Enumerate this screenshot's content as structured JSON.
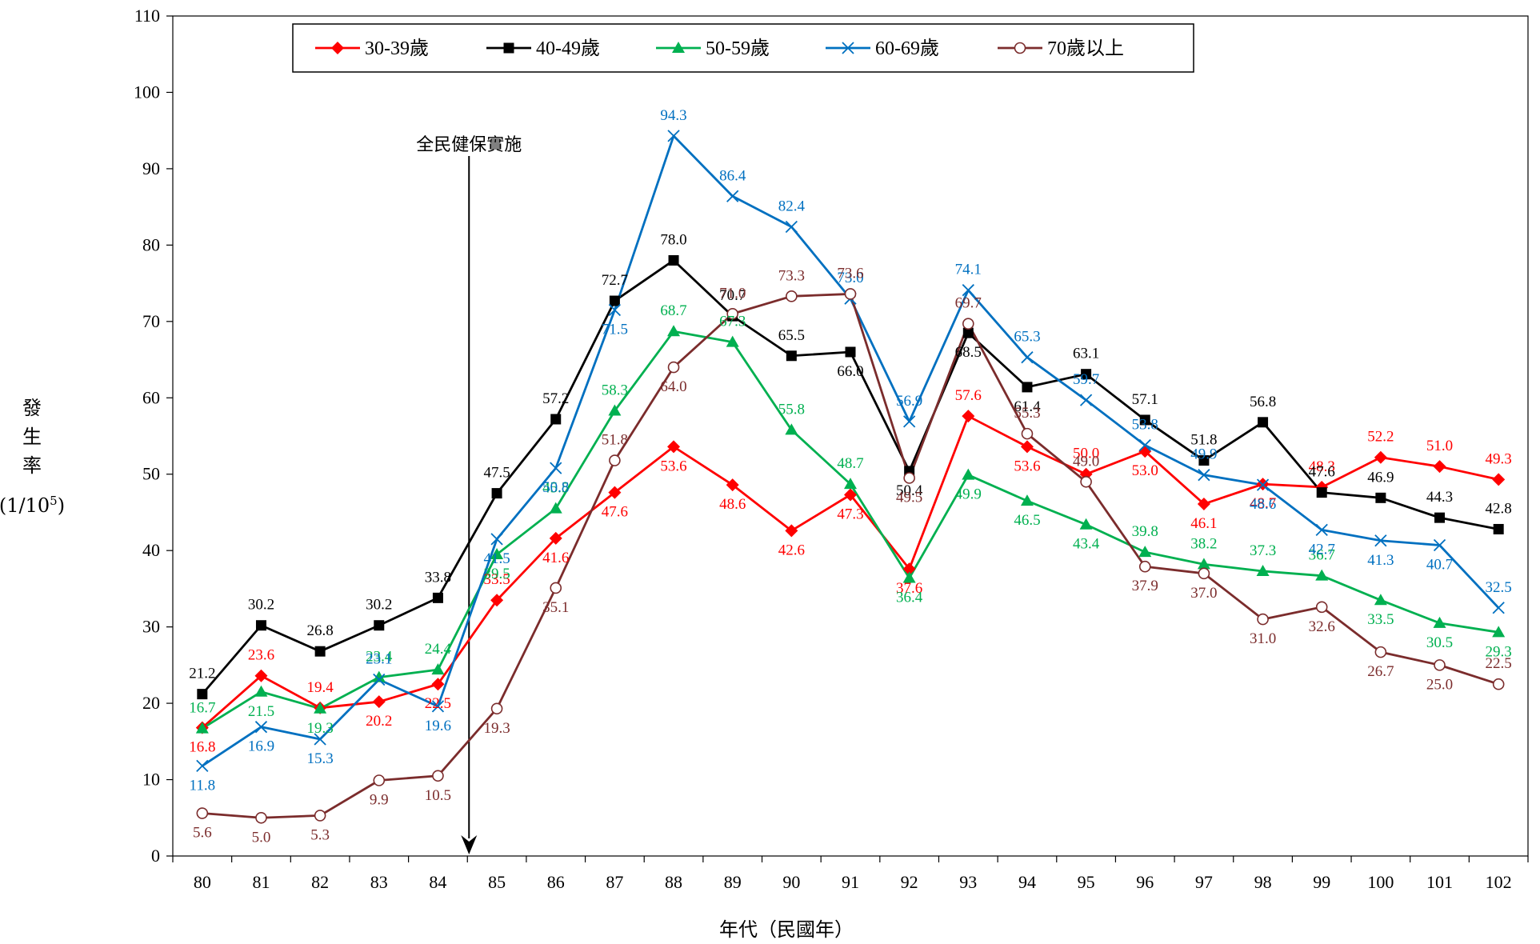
{
  "chart_data": {
    "type": "line",
    "categories": [
      "80",
      "81",
      "82",
      "83",
      "84",
      "85",
      "86",
      "87",
      "88",
      "89",
      "90",
      "91",
      "92",
      "93",
      "94",
      "95",
      "96",
      "97",
      "98",
      "99",
      "100",
      "101",
      "102"
    ],
    "ylim": [
      0,
      110
    ],
    "yticks": [
      "0",
      "10",
      "20",
      "30",
      "40",
      "50",
      "60",
      "70",
      "80",
      "90",
      "100",
      "110"
    ],
    "ylabel": [
      "發",
      "生",
      "率",
      "(1/10",
      "5",
      ")"
    ],
    "xlabel": "年代（民國年）",
    "annotation": {
      "text": "全民健保實施",
      "x_between": [
        "84",
        "85"
      ]
    },
    "legend_position": "top",
    "series": [
      {
        "name": "30-39歲",
        "color": "#ff0000",
        "marker": "diamond",
        "values": [
          16.8,
          23.6,
          19.4,
          20.2,
          22.5,
          33.5,
          41.6,
          47.6,
          53.6,
          48.6,
          42.6,
          47.3,
          37.6,
          57.6,
          53.6,
          50.0,
          53.0,
          46.1,
          48.7,
          48.3,
          52.2,
          51.0,
          49.3
        ]
      },
      {
        "name": "40-49歲",
        "color": "#000000",
        "marker": "square",
        "values": [
          21.2,
          30.2,
          26.8,
          30.2,
          33.8,
          47.5,
          57.2,
          72.7,
          78.0,
          70.7,
          65.5,
          66.0,
          50.4,
          68.5,
          61.4,
          63.1,
          57.1,
          51.8,
          56.8,
          47.6,
          46.9,
          44.3,
          42.8
        ]
      },
      {
        "name": "50-59歲",
        "color": "#00b050",
        "marker": "triangle",
        "values": [
          16.7,
          21.5,
          19.3,
          23.4,
          24.4,
          39.5,
          45.5,
          58.3,
          68.7,
          67.3,
          55.8,
          48.7,
          36.4,
          49.9,
          46.5,
          43.4,
          39.8,
          38.2,
          37.3,
          36.7,
          33.5,
          30.5,
          29.3
        ]
      },
      {
        "name": "60-69歲",
        "color": "#0070c0",
        "marker": "x",
        "values": [
          11.8,
          16.9,
          15.3,
          23.1,
          19.6,
          41.5,
          50.8,
          71.5,
          94.3,
          86.4,
          82.4,
          73.0,
          56.9,
          74.1,
          65.3,
          59.7,
          53.8,
          49.9,
          48.6,
          42.7,
          41.3,
          40.7,
          32.5
        ]
      },
      {
        "name": "70歲以上",
        "color": "#7b2c2c",
        "marker": "circle",
        "values": [
          5.6,
          5.0,
          5.3,
          9.9,
          10.5,
          19.3,
          35.1,
          51.8,
          64.0,
          71.0,
          73.3,
          73.6,
          49.5,
          69.7,
          55.3,
          49.0,
          37.9,
          37.0,
          31.0,
          32.6,
          26.7,
          25.0,
          22.5
        ]
      }
    ]
  }
}
